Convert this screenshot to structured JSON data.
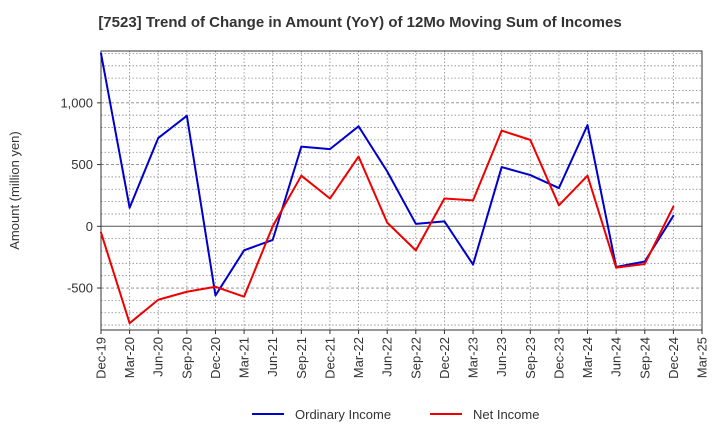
{
  "chart_data": {
    "type": "line",
    "title": "[7523]  Trend of Change in Amount (YoY) of 12Mo Moving Sum of Incomes",
    "xlabel": "",
    "ylabel": "Amount (million yen)",
    "ylim": [
      -840,
      1420
    ],
    "yticks": [
      -500,
      0,
      500,
      1000
    ],
    "ytick_labels": [
      "-500",
      "0",
      "500",
      "1,000"
    ],
    "categories": [
      "Dec-19",
      "Mar-20",
      "Jun-20",
      "Sep-20",
      "Dec-20",
      "Mar-21",
      "Jun-21",
      "Sep-21",
      "Dec-21",
      "Mar-22",
      "Jun-22",
      "Sep-22",
      "Dec-22",
      "Mar-23",
      "Jun-23",
      "Sep-23",
      "Dec-23",
      "Mar-24",
      "Jun-24",
      "Sep-24",
      "Dec-24",
      "Mar-25"
    ],
    "grid": true,
    "legend_position": "bottom",
    "series": [
      {
        "name": "Ordinary Income",
        "color": "#0000cc",
        "values": [
          1400,
          150,
          715,
          895,
          -560,
          -195,
          -110,
          645,
          625,
          810,
          445,
          20,
          40,
          -310,
          480,
          415,
          310,
          820,
          -330,
          -285,
          85,
          null
        ]
      },
      {
        "name": "Net Income",
        "color": "#ee0000",
        "values": [
          -50,
          -785,
          -595,
          -530,
          -490,
          -570,
          0,
          410,
          225,
          565,
          30,
          -195,
          225,
          210,
          775,
          700,
          170,
          410,
          -335,
          -305,
          160,
          null
        ]
      }
    ]
  }
}
